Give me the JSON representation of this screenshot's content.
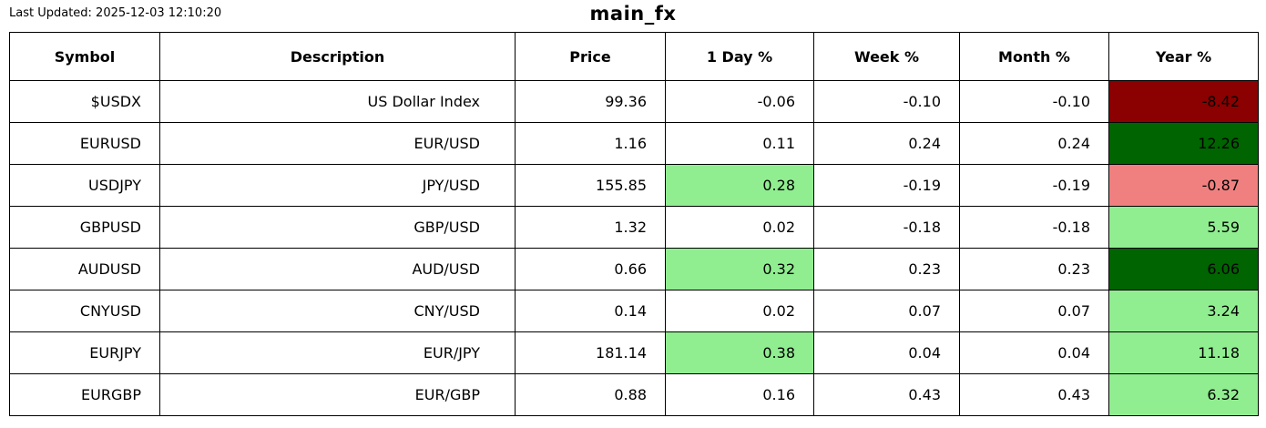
{
  "page": {
    "last_updated": "Last Updated: 2025-12-03 12:10:20",
    "title": "main_fx"
  },
  "colors": {
    "dark_red": "#8b0000",
    "dark_green": "#006400",
    "light_green": "#90ee90",
    "light_coral": "#f08080",
    "white": "#ffffff",
    "border": "#000000"
  },
  "chart_data": {
    "type": "table",
    "title": "main_fx",
    "last_updated": "Last Updated: 2025-12-03 12:10:20",
    "columns": [
      {
        "key": "symbol",
        "label": "Symbol"
      },
      {
        "key": "description",
        "label": "Description"
      },
      {
        "key": "price",
        "label": "Price"
      },
      {
        "key": "day",
        "label": "1 Day %"
      },
      {
        "key": "week",
        "label": "Week %"
      },
      {
        "key": "month",
        "label": "Month %"
      },
      {
        "key": "year",
        "label": "Year %"
      }
    ],
    "rows": [
      {
        "cells": [
          {
            "text": "$USDX"
          },
          {
            "text": "US Dollar Index"
          },
          {
            "text": "99.36"
          },
          {
            "text": "-0.06"
          },
          {
            "text": "-0.10"
          },
          {
            "text": "-0.10"
          },
          {
            "text": "-8.42",
            "bg": "dark_red"
          }
        ]
      },
      {
        "cells": [
          {
            "text": "EURUSD"
          },
          {
            "text": "EUR/USD"
          },
          {
            "text": "1.16"
          },
          {
            "text": "0.11"
          },
          {
            "text": "0.24"
          },
          {
            "text": "0.24"
          },
          {
            "text": "12.26",
            "bg": "dark_green"
          }
        ]
      },
      {
        "cells": [
          {
            "text": "USDJPY"
          },
          {
            "text": "JPY/USD"
          },
          {
            "text": "155.85"
          },
          {
            "text": "0.28",
            "bg": "light_green"
          },
          {
            "text": "-0.19"
          },
          {
            "text": "-0.19"
          },
          {
            "text": "-0.87",
            "bg": "light_coral"
          }
        ]
      },
      {
        "cells": [
          {
            "text": "GBPUSD"
          },
          {
            "text": "GBP/USD"
          },
          {
            "text": "1.32"
          },
          {
            "text": "0.02"
          },
          {
            "text": "-0.18"
          },
          {
            "text": "-0.18"
          },
          {
            "text": "5.59",
            "bg": "light_green"
          }
        ]
      },
      {
        "cells": [
          {
            "text": "AUDUSD"
          },
          {
            "text": "AUD/USD"
          },
          {
            "text": "0.66"
          },
          {
            "text": "0.32",
            "bg": "light_green"
          },
          {
            "text": "0.23"
          },
          {
            "text": "0.23"
          },
          {
            "text": "6.06",
            "bg": "dark_green"
          }
        ]
      },
      {
        "cells": [
          {
            "text": "CNYUSD"
          },
          {
            "text": "CNY/USD"
          },
          {
            "text": "0.14"
          },
          {
            "text": "0.02"
          },
          {
            "text": "0.07"
          },
          {
            "text": "0.07"
          },
          {
            "text": "3.24",
            "bg": "light_green"
          }
        ]
      },
      {
        "cells": [
          {
            "text": "EURJPY"
          },
          {
            "text": "EUR/JPY"
          },
          {
            "text": "181.14"
          },
          {
            "text": "0.38",
            "bg": "light_green"
          },
          {
            "text": "0.04"
          },
          {
            "text": "0.04"
          },
          {
            "text": "11.18",
            "bg": "light_green"
          }
        ]
      },
      {
        "cells": [
          {
            "text": "EURGBP"
          },
          {
            "text": "EUR/GBP"
          },
          {
            "text": "0.88"
          },
          {
            "text": "0.16"
          },
          {
            "text": "0.43"
          },
          {
            "text": "0.43"
          },
          {
            "text": "6.32",
            "bg": "light_green"
          }
        ]
      }
    ]
  }
}
